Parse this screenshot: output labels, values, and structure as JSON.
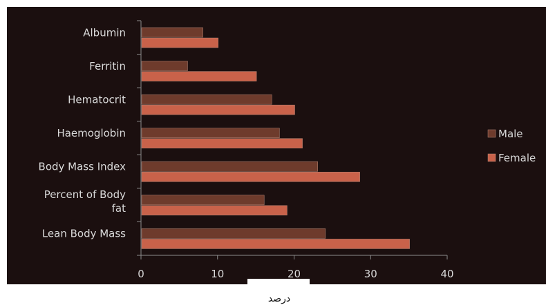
{
  "chart_data": {
    "type": "bar",
    "orientation": "horizontal",
    "categories": [
      "Albumin",
      "Ferritin",
      "Hematocrit",
      "Haemoglobin",
      "Body Mass Index",
      "Percent of Body fat",
      "Lean Body Mass"
    ],
    "category_lines": [
      [
        "Albumin"
      ],
      [
        "Ferritin"
      ],
      [
        "Hematocrit"
      ],
      [
        "Haemoglobin"
      ],
      [
        "Body Mass Index"
      ],
      [
        "Percent of Body",
        "fat"
      ],
      [
        "Lean Body Mass"
      ]
    ],
    "series": [
      {
        "name": "Male",
        "color": "#6e3b2c",
        "values": [
          8,
          6,
          17,
          18,
          23,
          16,
          24
        ]
      },
      {
        "name": "Female",
        "color": "#c9624a",
        "values": [
          10,
          15,
          20,
          21,
          28.5,
          19,
          35
        ]
      }
    ],
    "xlim": [
      0,
      40
    ],
    "xticks": [
      "0",
      "10",
      "20",
      "30",
      "40"
    ],
    "xlabel": "درصد",
    "ylabel": "",
    "title": "",
    "grid": false,
    "legend_position": "right",
    "background_color": "#1b0f0f"
  }
}
